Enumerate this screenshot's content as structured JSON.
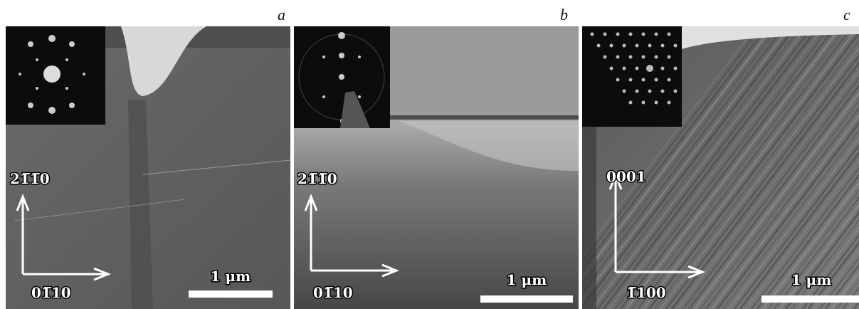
{
  "panels": [
    {
      "letter": "a",
      "vertical_label": "21̅1̅0",
      "horizontal_label": "01̅10",
      "scale_label": "1 μm"
    },
    {
      "letter": "b",
      "vertical_label": "21̅1̅0",
      "horizontal_label": "01̅10",
      "scale_label": "1 μm"
    },
    {
      "letter": "c",
      "vertical_label": "0001",
      "horizontal_label": "1̅100",
      "scale_label": "1 μm"
    }
  ]
}
